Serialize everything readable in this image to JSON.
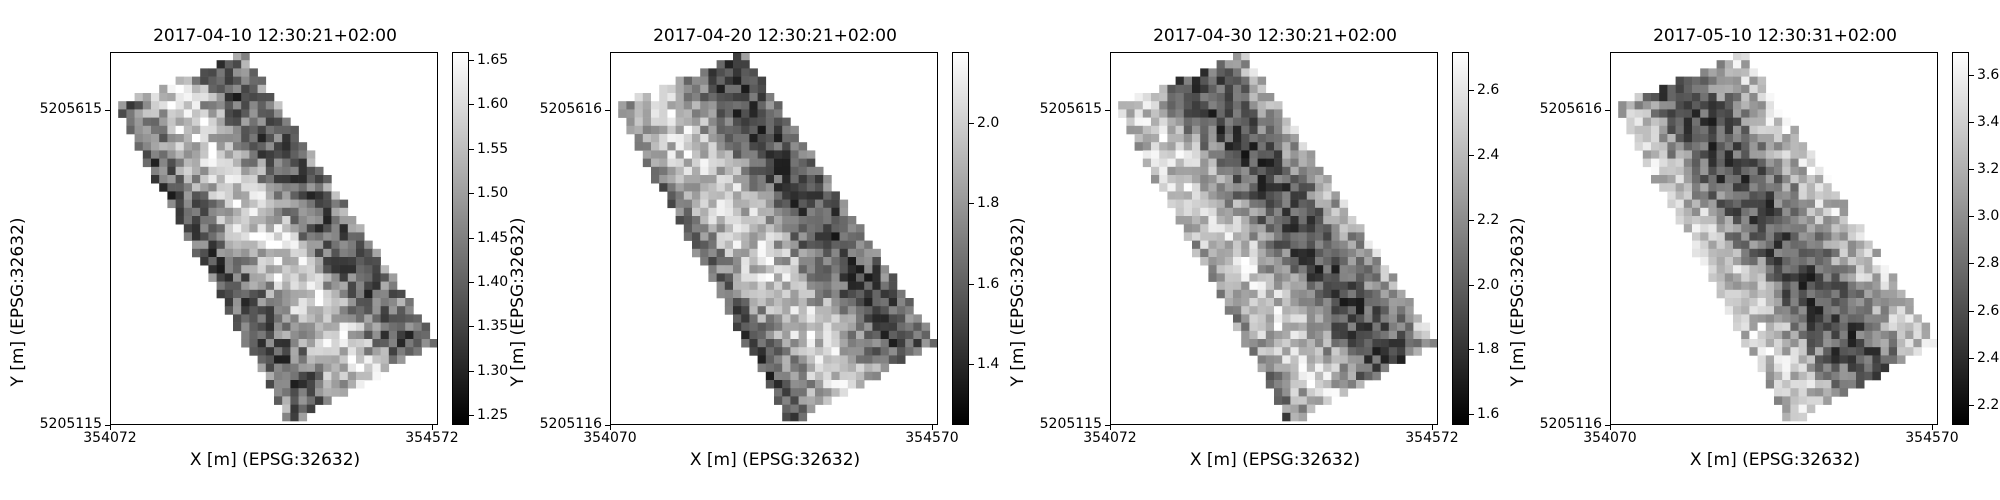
{
  "chart_data": [
    {
      "type": "heatmap",
      "title": "2017-04-10 12:30:21+02:00",
      "xlabel": "X [m] (EPSG:32632)",
      "ylabel": "Y [m] (EPSG:32632)",
      "x_ticks": [
        "354072",
        "354572"
      ],
      "y_ticks": [
        "5205615",
        "5205115"
      ],
      "colorbar_ticks": [
        "1.25",
        "1.30",
        "1.35",
        "1.40",
        "1.45",
        "1.50",
        "1.55",
        "1.60",
        "1.65"
      ],
      "colorbar_range": [
        1.24,
        1.66
      ],
      "colormap": "gray"
    },
    {
      "type": "heatmap",
      "title": "2017-04-20 12:30:21+02:00",
      "xlabel": "X [m] (EPSG:32632)",
      "ylabel": "Y [m] (EPSG:32632)",
      "x_ticks": [
        "354070",
        "354570"
      ],
      "y_ticks": [
        "5205616",
        "5205116"
      ],
      "colorbar_ticks": [
        "1.4",
        "1.6",
        "1.8",
        "2.0"
      ],
      "colorbar_range": [
        1.25,
        2.18
      ],
      "colormap": "gray"
    },
    {
      "type": "heatmap",
      "title": "2017-04-30 12:30:21+02:00",
      "xlabel": "X [m] (EPSG:32632)",
      "ylabel": "Y [m] (EPSG:32632)",
      "x_ticks": [
        "354072",
        "354572"
      ],
      "y_ticks": [
        "5205615",
        "5205115"
      ],
      "colorbar_ticks": [
        "1.6",
        "1.8",
        "2.0",
        "2.2",
        "2.4",
        "2.6"
      ],
      "colorbar_range": [
        1.57,
        2.72
      ],
      "colormap": "gray"
    },
    {
      "type": "heatmap",
      "title": "2017-05-10 12:30:31+02:00",
      "xlabel": "X [m] (EPSG:32632)",
      "ylabel": "Y [m] (EPSG:32632)",
      "x_ticks": [
        "354070",
        "354570"
      ],
      "y_ticks": [
        "5205616",
        "5205116"
      ],
      "colorbar_ticks": [
        "2.2",
        "2.4",
        "2.6",
        "2.8",
        "3.0",
        "3.2",
        "3.4",
        "3.6"
      ],
      "colorbar_range": [
        2.12,
        3.7
      ],
      "colormap": "gray"
    }
  ]
}
